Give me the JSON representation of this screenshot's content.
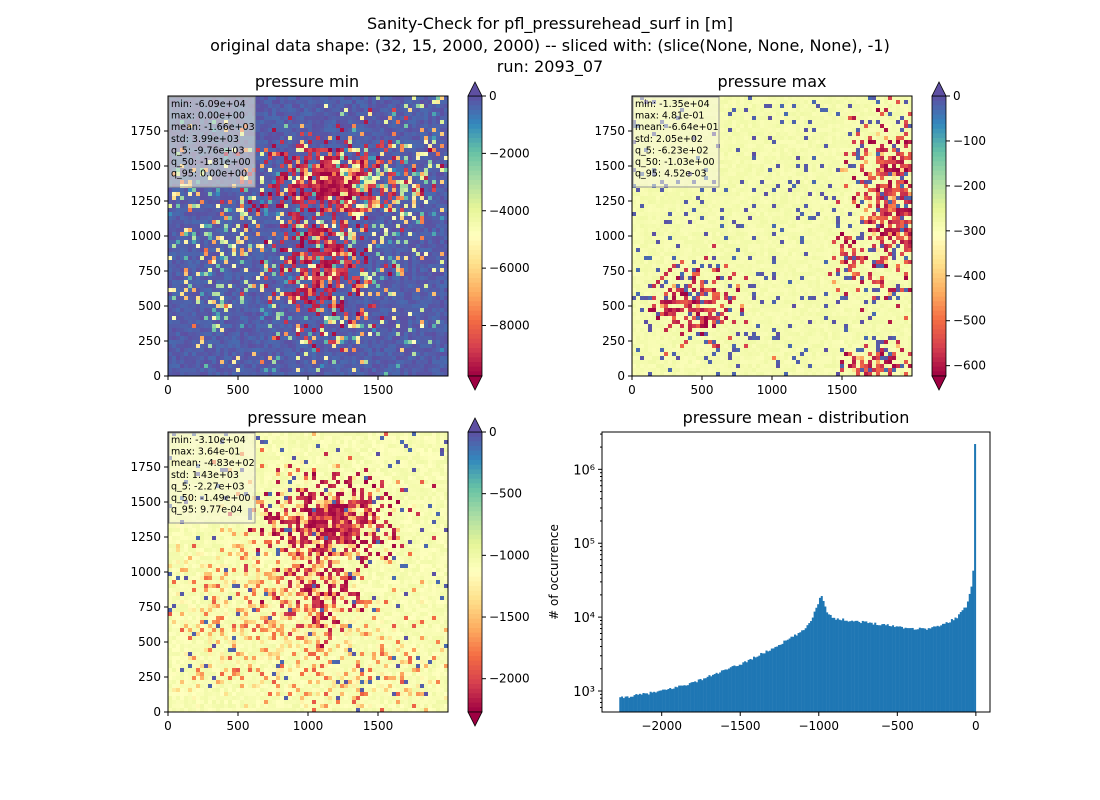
{
  "suptitle": {
    "line1": "Sanity-Check for pfl_pressurehead_surf in [m]",
    "line2": "original data shape: (32, 15, 2000, 2000) -- sliced with: (slice(None, None, None), -1)",
    "line3": "run: 2093_07"
  },
  "colors": {
    "spectral": [
      "#9e0142",
      "#d53e4f",
      "#f46d43",
      "#fdae61",
      "#fee08b",
      "#ffffbf",
      "#e6f598",
      "#abdda4",
      "#66c2a5",
      "#3288bd",
      "#5e4fa2"
    ],
    "hist_bar": "#1f77b4",
    "stats_box_bg": "#f5f5dc"
  },
  "chart_data": [
    {
      "type": "heatmap",
      "name": "pressure-min",
      "title": "pressure min",
      "xlim": [
        0,
        2000
      ],
      "ylim": [
        0,
        2000
      ],
      "xticks": [
        "0",
        "500",
        "1000",
        "1500"
      ],
      "yticks": [
        "0",
        "250",
        "500",
        "750",
        "1000",
        "1250",
        "1500",
        "1750"
      ],
      "colorbar": {
        "vmin": -9760,
        "vmax": 0,
        "ticks": [
          "0",
          "−2000",
          "−4000",
          "−6000",
          "−8000"
        ],
        "extend": "both"
      },
      "stats": [
        "min: -6.09e+04",
        "max: 0.00e+00",
        "mean: -1.66e+03",
        "std: 3.99e+03",
        "q_5: -9.76e+03",
        "q_50: -1.81e+00",
        "q_95: 0.00e+00"
      ]
    },
    {
      "type": "heatmap",
      "name": "pressure-max",
      "title": "pressure max",
      "xlim": [
        0,
        2000
      ],
      "ylim": [
        0,
        2000
      ],
      "xticks": [
        "0",
        "500",
        "1000",
        "1500"
      ],
      "yticks": [
        "0",
        "250",
        "500",
        "750",
        "1000",
        "1250",
        "1500",
        "1750"
      ],
      "colorbar": {
        "vmin": -623,
        "vmax": 0,
        "ticks": [
          "0",
          "−100",
          "−200",
          "−300",
          "−400",
          "−500",
          "−600"
        ],
        "extend": "both"
      },
      "stats": [
        "min: -1.35e+04",
        "max: 4.81e-01",
        "mean: -6.64e+01",
        "std: 2.05e+02",
        "q_5: -6.23e+02",
        "q_50: -1.03e+00",
        "q_95: 4.52e-03"
      ]
    },
    {
      "type": "heatmap",
      "name": "pressure-mean",
      "title": "pressure mean",
      "xlim": [
        0,
        2000
      ],
      "ylim": [
        0,
        2000
      ],
      "xticks": [
        "0",
        "500",
        "1000",
        "1500"
      ],
      "yticks": [
        "0",
        "250",
        "500",
        "750",
        "1000",
        "1250",
        "1500",
        "1750"
      ],
      "colorbar": {
        "vmin": -2270,
        "vmax": 0,
        "ticks": [
          "0",
          "−500",
          "−1000",
          "−1500",
          "−2000"
        ],
        "extend": "both"
      },
      "stats": [
        "min: -3.10e+04",
        "max: 3.64e-01",
        "mean: -4.83e+02",
        "std: 1.43e+03",
        "q_5: -2.27e+03",
        "q_50: -1.49e+00",
        "q_95: 9.77e-04"
      ]
    },
    {
      "type": "bar",
      "name": "pressure-mean-distribution",
      "title": "pressure mean - distribution",
      "ylabel": "# of occurrence",
      "yscale": "log",
      "xlim": [
        -2380,
        90
      ],
      "ylim": [
        520,
        3200000
      ],
      "xticks": [
        {
          "value": -2000,
          "label": "−2000"
        },
        {
          "value": -1500,
          "label": "−1500"
        },
        {
          "value": -1000,
          "label": "−1000"
        },
        {
          "value": -500,
          "label": "−500"
        },
        {
          "value": 0,
          "label": "0"
        }
      ],
      "yticks": [
        {
          "value": 1000,
          "label": "10³"
        },
        {
          "value": 10000,
          "label": "10⁴"
        },
        {
          "value": 100000,
          "label": "10⁵"
        },
        {
          "value": 1000000,
          "label": "10⁶"
        }
      ],
      "bin_range": [
        -2270,
        0
      ],
      "bins": 200,
      "profile_points": [
        [
          -2270,
          800
        ],
        [
          -2000,
          1000
        ],
        [
          -1800,
          1300
        ],
        [
          -1500,
          2300
        ],
        [
          -1300,
          3700
        ],
        [
          -1100,
          6500
        ],
        [
          -1050,
          9000
        ],
        [
          -1010,
          14000
        ],
        [
          -990,
          20000
        ],
        [
          -970,
          17000
        ],
        [
          -950,
          12000
        ],
        [
          -900,
          9500
        ],
        [
          -800,
          9000
        ],
        [
          -600,
          8000
        ],
        [
          -400,
          7000
        ],
        [
          -300,
          7000
        ],
        [
          -200,
          8000
        ],
        [
          -120,
          10000
        ],
        [
          -60,
          14000
        ],
        [
          -30,
          25000
        ],
        [
          -10,
          60000
        ],
        [
          -5,
          2200000
        ]
      ]
    }
  ]
}
